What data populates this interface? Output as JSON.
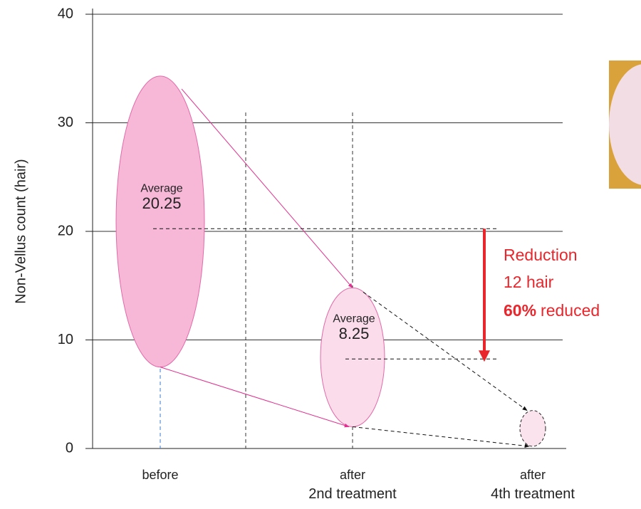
{
  "chart_data": {
    "type": "range",
    "y_label": "Non-Vellus count (hair)",
    "categories": [
      [
        "before"
      ],
      [
        "after",
        "2nd treatment"
      ],
      [
        "after",
        "4th treatment"
      ]
    ],
    "low": [
      7.5,
      2.0,
      0.2
    ],
    "high": [
      34.3,
      14.8,
      3.5
    ],
    "averages": [
      20.25,
      8.25,
      null
    ],
    "average_label": "Average",
    "colors": [
      "#f7b8d7",
      "#fbdceb",
      "#fbe3ee"
    ],
    "ylim": [
      0,
      40
    ],
    "yticks": [
      0,
      10,
      20,
      30,
      40
    ],
    "grid": true,
    "annotation": {
      "lines": [
        "Reduction",
        "12 hair"
      ],
      "bold": "60%",
      "rest": "reduced"
    }
  }
}
